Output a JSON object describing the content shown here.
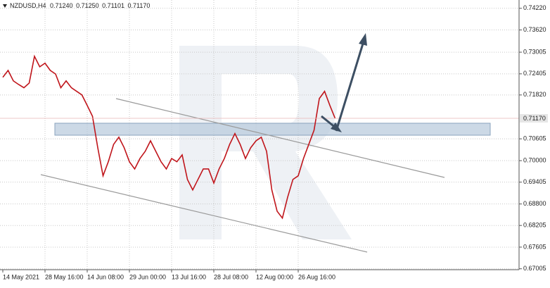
{
  "chart_data": {
    "type": "line",
    "symbol": "NZDUSD,H4",
    "ohlc": [
      "0.71240",
      "0.71250",
      "0.71101",
      "0.71170"
    ],
    "categories": [
      "14 May 2021",
      null,
      null,
      null,
      null,
      null,
      null,
      null,
      "28 May 16:00",
      null,
      null,
      null,
      null,
      null,
      null,
      null,
      "14 Jun 08:00",
      null,
      null,
      null,
      null,
      null,
      null,
      null,
      "29 Jun 00:00",
      null,
      null,
      null,
      null,
      null,
      null,
      null,
      "13 Jul 16:00",
      null,
      null,
      null,
      null,
      null,
      null,
      null,
      "28 Jul 08:00",
      null,
      null,
      null,
      null,
      null,
      null,
      null,
      "12 Aug 00:00",
      null,
      null,
      null,
      null,
      null,
      null,
      null,
      "26 Aug 16:00",
      null,
      null,
      null,
      null,
      null,
      null,
      null
    ],
    "values": [
      0.7231,
      0.725,
      0.7221,
      0.7211,
      0.7202,
      0.7215,
      0.7289,
      0.726,
      0.727,
      0.725,
      0.724,
      0.7202,
      0.7221,
      0.7202,
      0.7192,
      0.7182,
      0.7153,
      0.7123,
      0.7036,
      0.6958,
      0.6997,
      0.7045,
      0.7065,
      0.7036,
      0.6997,
      0.6977,
      0.7006,
      0.7026,
      0.7055,
      0.7026,
      0.6997,
      0.6977,
      0.7006,
      0.6997,
      0.7016,
      0.6948,
      0.6919,
      0.6948,
      0.6977,
      0.6977,
      0.6938,
      0.6977,
      0.7006,
      0.7045,
      0.7075,
      0.7045,
      0.7006,
      0.7036,
      0.7055,
      0.7065,
      0.7026,
      0.6919,
      0.686,
      0.6841,
      0.6899,
      0.6948,
      0.6958,
      0.7006,
      0.7045,
      0.7084,
      0.7172,
      0.7192,
      0.7153,
      0.7117
    ],
    "color": "#c0151b",
    "ylim": [
      0.6698,
      0.7445
    ],
    "yticks": [
      {
        "value": 0.7422,
        "label": "0.74220"
      },
      {
        "value": 0.7362,
        "label": "0.73620"
      },
      0.73005,
      0.72405,
      {
        "value": 0.7182,
        "label": "0.71820"
      },
      0.70605,
      {
        "value": 0.7,
        "label": "0.70000"
      },
      0.69405,
      {
        "value": 0.688,
        "label": "0.68800"
      },
      0.68205,
      0.67605,
      0.67005
    ],
    "grid": true
  }
}
